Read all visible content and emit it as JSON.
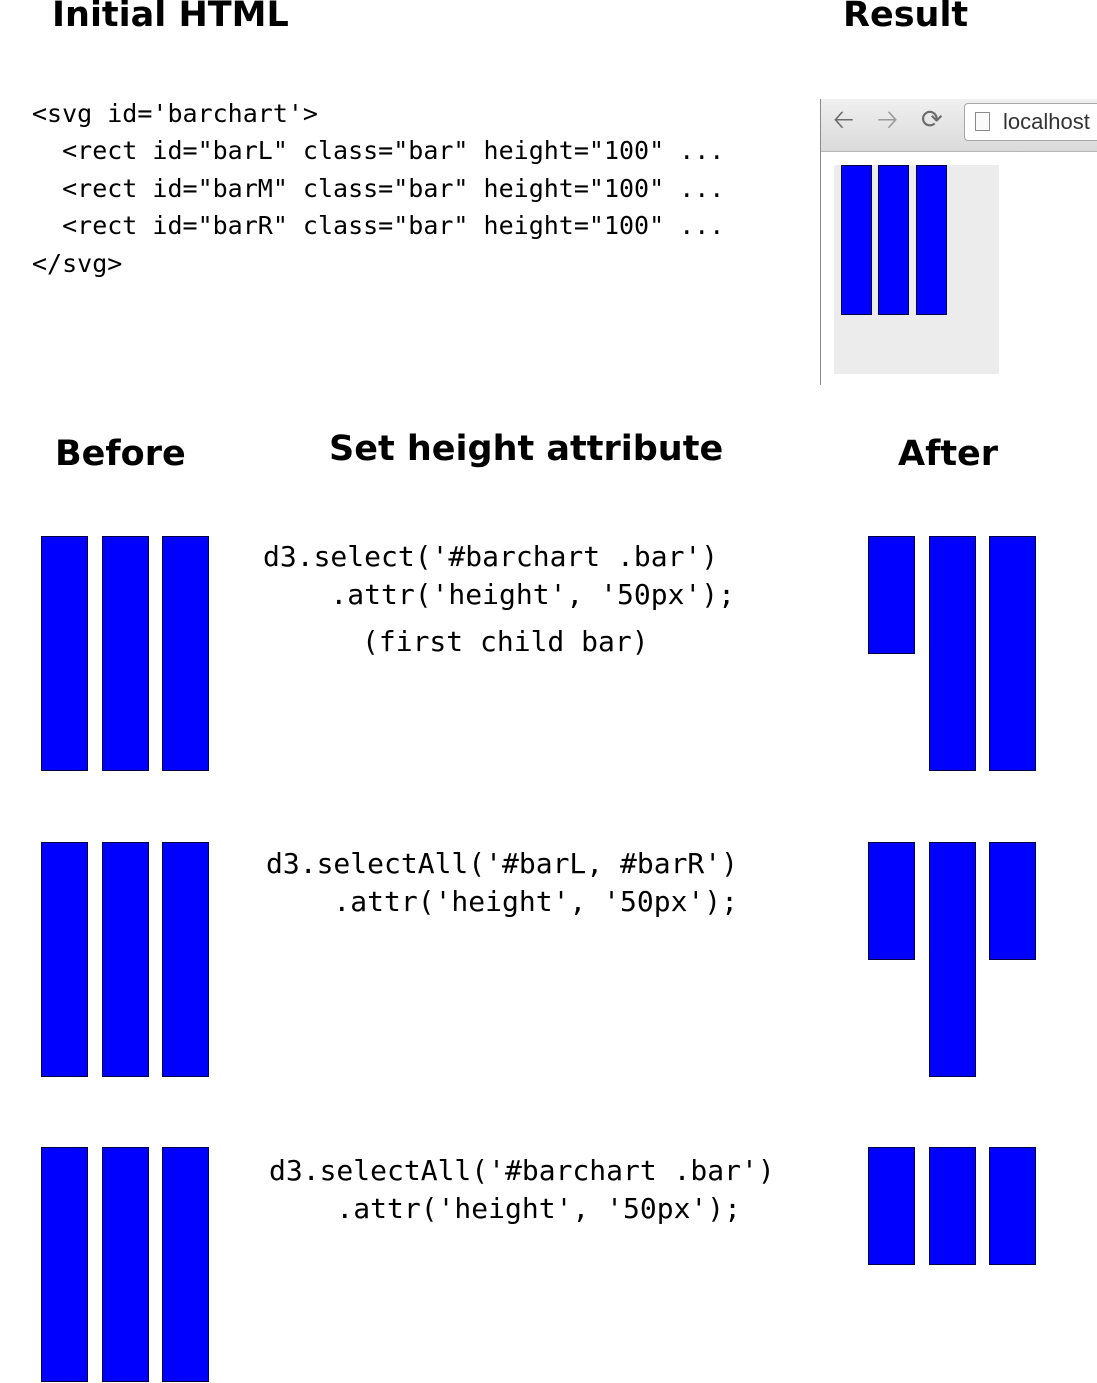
{
  "headings": {
    "initial_html": "Initial HTML",
    "result": "Result",
    "before": "Before",
    "set_height": "Set height attribute",
    "after": "After"
  },
  "initial_html_lines": [
    "<svg id='barchart'>",
    "  <rect id=\"barL\" class=\"bar\" height=\"100\" ...",
    "  <rect id=\"barM\" class=\"bar\" height=\"100\" ...",
    "  <rect id=\"barR\" class=\"bar\" height=\"100\" ...",
    "</svg>"
  ],
  "browser": {
    "url": "localhost",
    "back_icon": "back-arrow-icon",
    "forward_icon": "forward-arrow-icon",
    "reload_icon": "reload-icon",
    "page_icon": "page-icon"
  },
  "bar_color": "#0000ff",
  "rows": [
    {
      "code": [
        "d3.select('#barchart .bar')",
        "    .attr('height', '50px');"
      ],
      "note": "(first child bar)",
      "before_heights": [
        100,
        100,
        100
      ],
      "after_heights": [
        50,
        100,
        100
      ]
    },
    {
      "code": [
        "d3.selectAll('#barL, #barR')",
        "    .attr('height', '50px');"
      ],
      "note": "",
      "before_heights": [
        100,
        100,
        100
      ],
      "after_heights": [
        50,
        100,
        50
      ]
    },
    {
      "code": [
        "d3.selectAll('#barchart .bar')",
        "    .attr('height', '50px');"
      ],
      "note": "",
      "before_heights": [
        100,
        100,
        100
      ],
      "after_heights": [
        50,
        50,
        50
      ]
    }
  ]
}
